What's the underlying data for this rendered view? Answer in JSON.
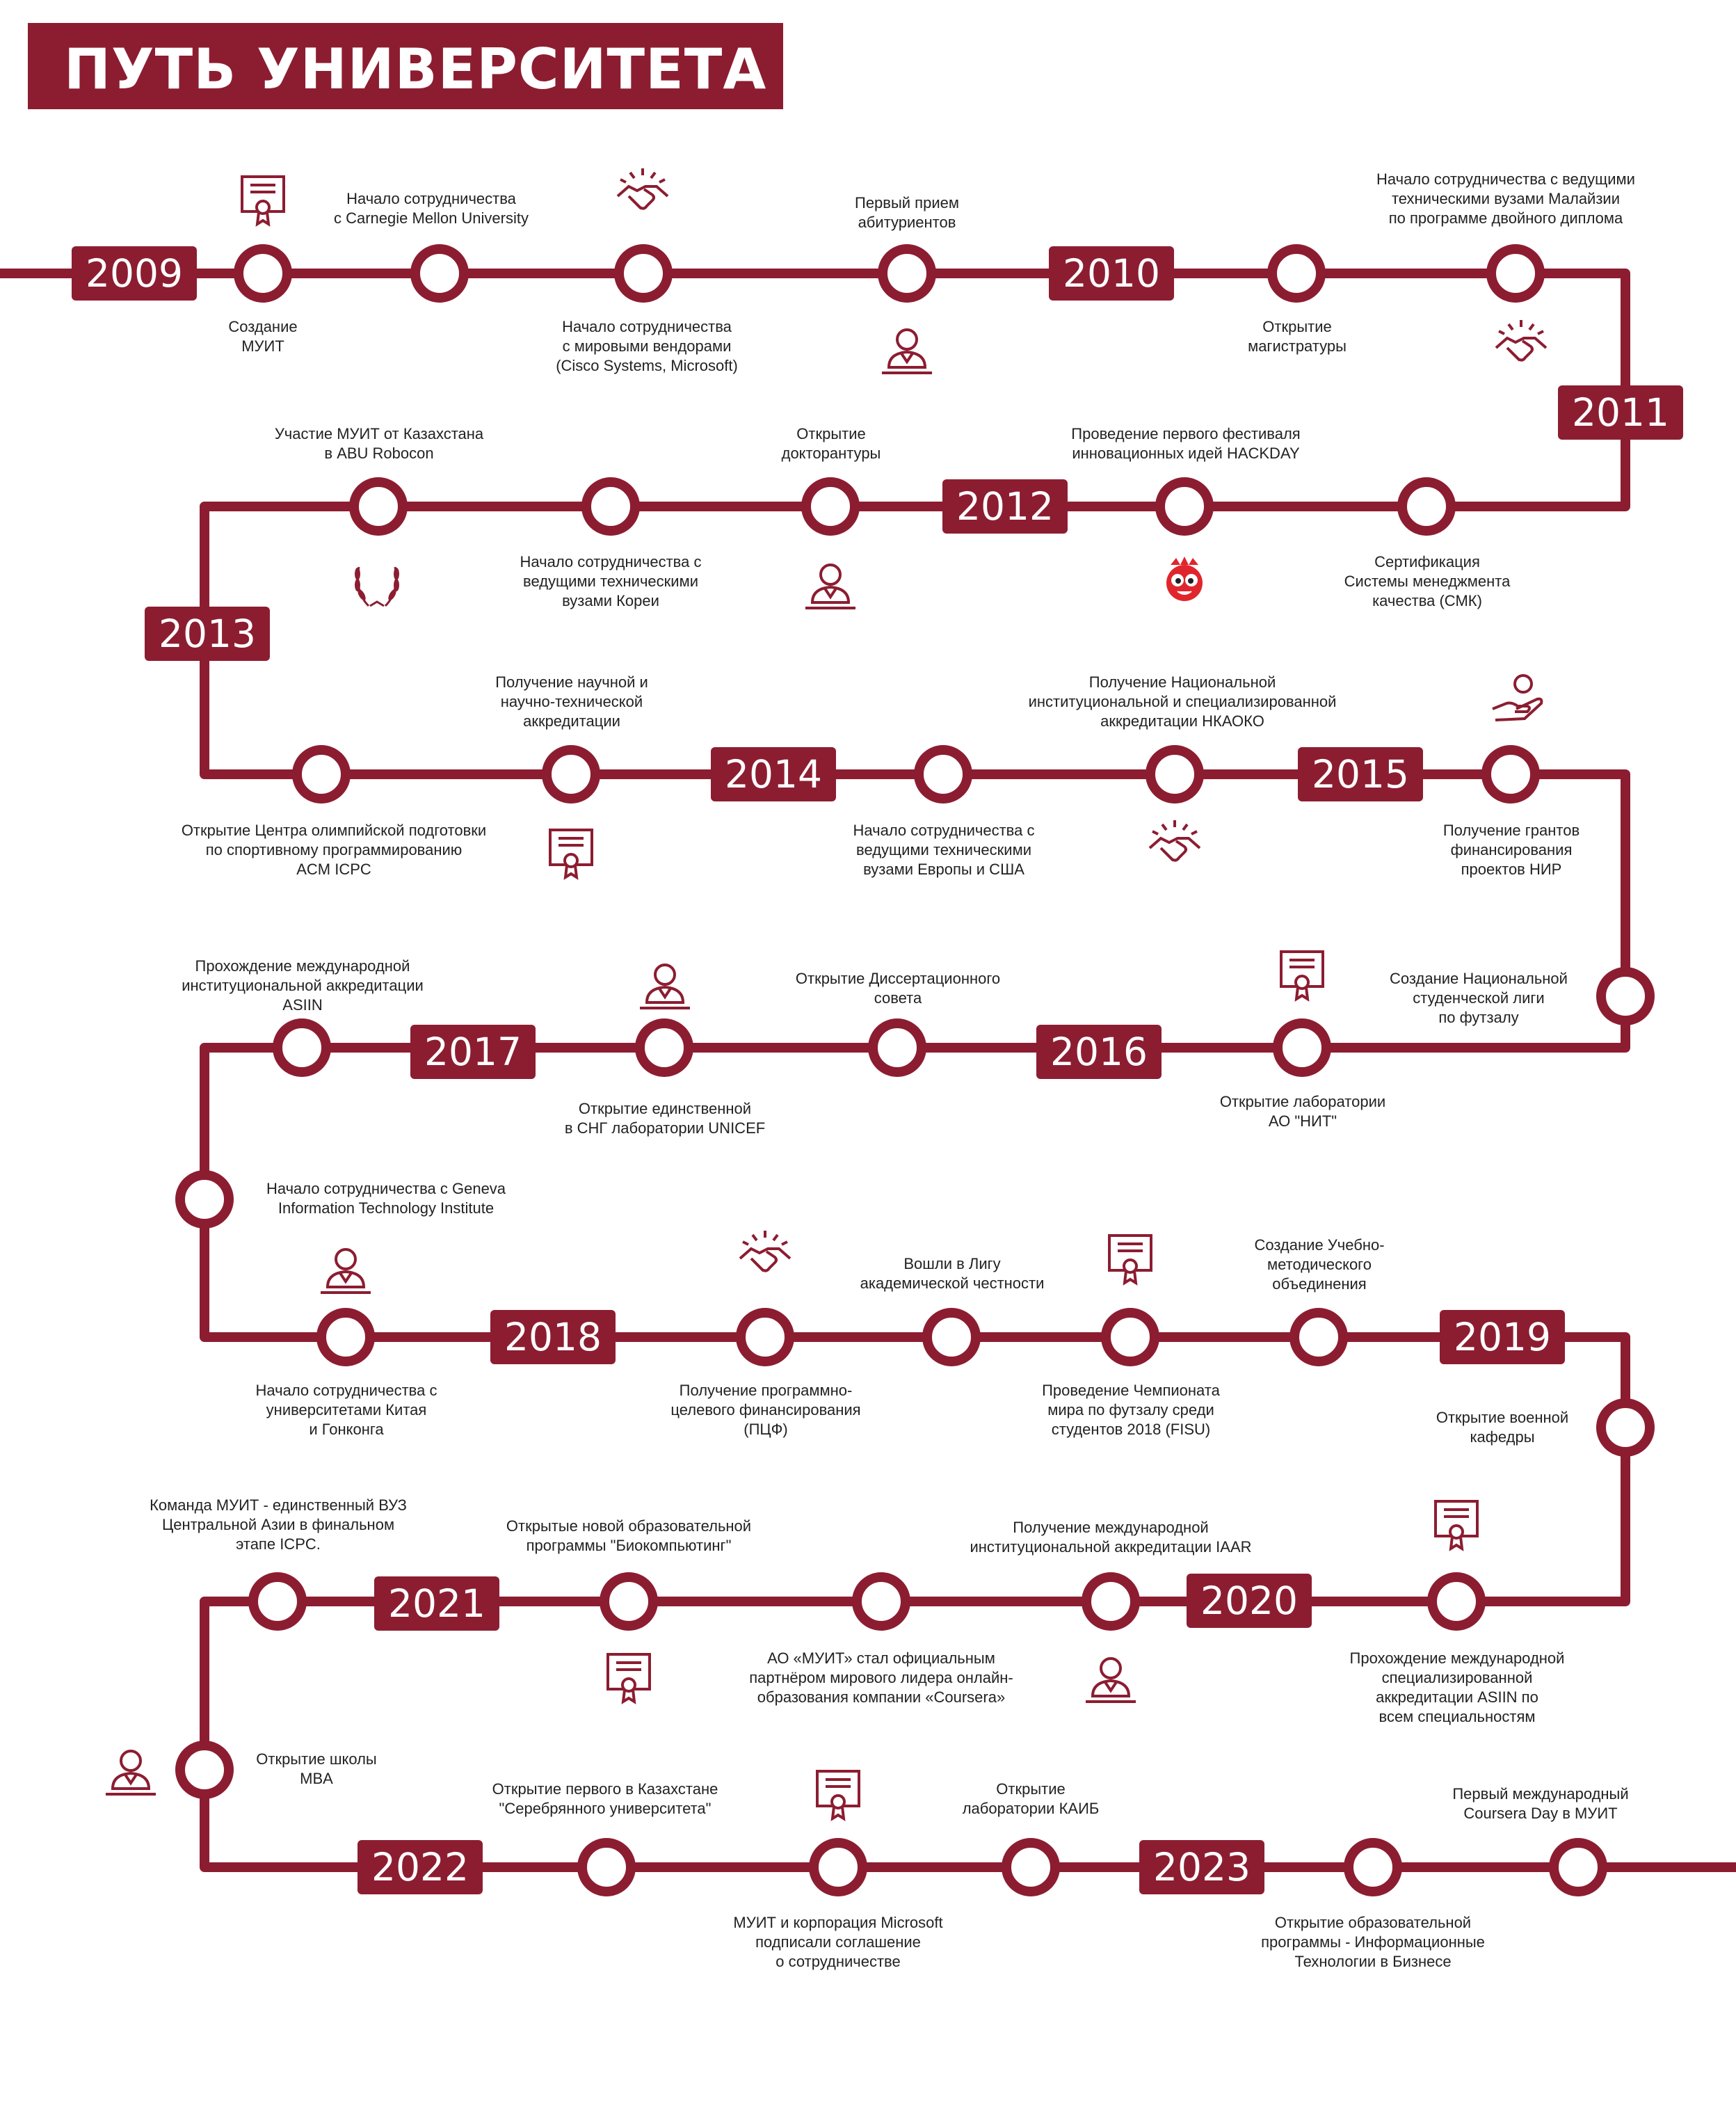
{
  "title": "ПУТЬ УНИВЕРСИТЕТА",
  "colors": {
    "accent": "#8c1d31",
    "mascot": "#e0262c",
    "text": "#222222",
    "background": "#ffffff"
  },
  "years": [
    "2009",
    "2010",
    "2011",
    "2012",
    "2013",
    "2014",
    "2015",
    "2016",
    "2017",
    "2018",
    "2019",
    "2020",
    "2021",
    "2022",
    "2023"
  ],
  "events": [
    "Создание\nМУИТ",
    "Начало сотрудничества\nс Carnegie Mellon University",
    "Начало сотрудничества\nс мировыми вендорами\n(Cisco Systems, Microsoft)",
    "Первый прием\nабитуриентов",
    "Открытие\nмагистратуры",
    "Начало сотрудничества с ведущими\nтехническими вузами Малайзии\nпо программе двойного диплома",
    "Участие МУИТ от Казахстана\nв ABU Robocon",
    "Начало сотрудничества с\nведущими техническими\nвузами Кореи",
    "Открытие\nдокторантуры",
    "Проведение первого фестиваля\nинновационных идей HACKDAY",
    "Сертификация\nСистемы менеджмента\nкачества (СМК)",
    "Открытие Центра олимпийской подготовки\nпо спортивному программированию\nACM ICPC",
    "Получение научной и\nнаучно-технической\nаккредитации",
    "Начало сотрудничества с\nведущими техническими\nвузами Европы и США",
    "Получение Национальной\nинституциональной и специализированной\nаккредитации НКАОКО",
    "Получение грантов\nфинансирования\nпроектов НИР",
    "Создание Национальной\nстуденческой лиги\nпо футзалу",
    "Прохождение международной\nинституциональной аккредитации\nASIIN",
    "Открытие единственной\nв СНГ лаборатории UNICEF",
    "Открытие Диссертационного\nсовета",
    "Открытие лаборатории\nАО \"НИТ\"",
    "Начало сотрудничества с Geneva\nInformation Technology Institute",
    "Начало сотрудничества с\nуниверситетами Китая\nи Гонконга",
    "Получение программно-\nцелевого финансирования\n(ПЦФ)",
    "Вошли в Лигу\nакадемической честности",
    "Проведение Чемпионата\nмира по футзалу среди\nстудентов 2018 (FISU)",
    "Создание Учебно-\nметодического\nобъединения",
    "Открытие военной\nкафедры",
    "Команда МУИТ - единственный ВУЗ\nЦентральной Азии в финальном\nэтапе ICPC.",
    "Открытые новой образовательной\nпрограммы \"Биокомпьютинг\"",
    "АО «МУИТ» стал официальным\nпартнёром мирового лидера онлайн-\nобразования компании «Coursera»",
    "Получение международной\nинституциональной аккредитации IAAR",
    "Прохождение международной\nспециализированной\nаккредитации ASIIN по\nвсем специальностям",
    "Открытие школы\nMBA",
    "Открытие первого в Казахстане\n\"Серебрянного университета\"",
    "МУИТ и корпорация Microsoft\nподписали соглашение\nо сотрудничестве",
    "Открытие\nлаборатории КАИБ",
    "Открытие образовательной\nпрограммы - Информационные\nТехнологии в Бизнесе",
    "Первый международный\nCoursera Day в МУИТ"
  ],
  "icons": [
    "certificate-icon",
    "handshake-icon",
    "person-icon",
    "handshake-icon",
    "laurel-wreath-icon",
    "person-icon",
    "mascot-icon",
    "certificate-icon",
    "handshake-icon",
    "charity-hand-icon",
    "person-icon",
    "certificate-icon",
    "person-icon",
    "handshake-icon",
    "certificate-icon",
    "certificate-icon",
    "certificate-icon",
    "person-icon",
    "person-icon",
    "certificate-icon"
  ]
}
